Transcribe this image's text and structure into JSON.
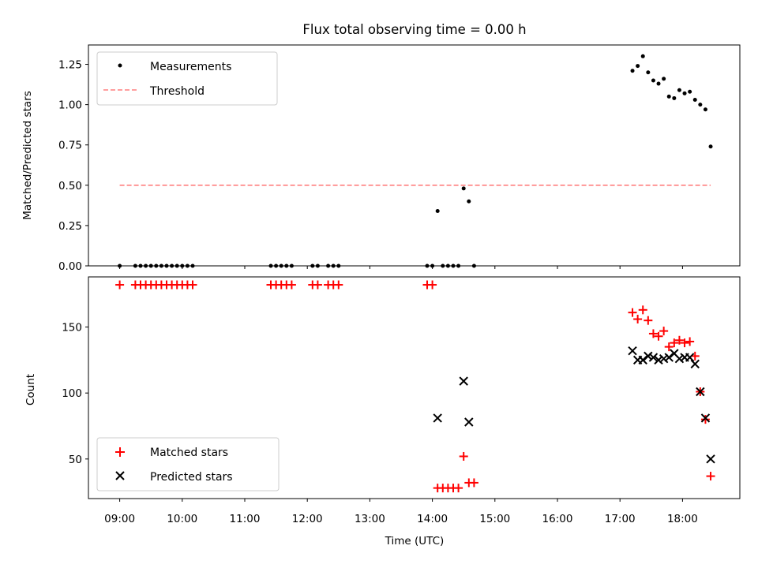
{
  "title": "Flux total observing time = 0.00 h",
  "chart_data": [
    {
      "type": "scatter",
      "ylabel": "Matched/Predicted stars",
      "xlim": [
        "08:30",
        "18:55"
      ],
      "ylim": [
        0,
        1.37
      ],
      "yticks": [
        0.0,
        0.25,
        0.5,
        0.75,
        1.0,
        1.25
      ],
      "ytick_labels": [
        "0.00",
        "0.25",
        "0.50",
        "0.75",
        "1.00",
        "1.25"
      ],
      "legend_position": "top-left",
      "series": [
        {
          "name": "Measurements",
          "marker": "dot",
          "color": "#000000",
          "x": [
            "09:00",
            "09:15",
            "09:20",
            "09:25",
            "09:30",
            "09:35",
            "09:40",
            "09:45",
            "09:50",
            "09:55",
            "10:00",
            "10:05",
            "10:10",
            "11:25",
            "11:30",
            "11:35",
            "11:40",
            "11:45",
            "12:05",
            "12:10",
            "12:20",
            "12:25",
            "12:30",
            "13:55",
            "14:00",
            "14:05",
            "14:10",
            "14:15",
            "14:20",
            "14:25",
            "14:30",
            "14:35",
            "14:40",
            "17:12",
            "17:17",
            "17:22",
            "17:27",
            "17:32",
            "17:37",
            "17:42",
            "17:47",
            "17:52",
            "17:57",
            "18:02",
            "18:07",
            "18:12",
            "18:17",
            "18:22",
            "18:27"
          ],
          "y": [
            0,
            0,
            0,
            0,
            0,
            0,
            0,
            0,
            0,
            0,
            0,
            0,
            0,
            0,
            0,
            0,
            0,
            0,
            0,
            0,
            0,
            0,
            0,
            0,
            0,
            0.34,
            0,
            0,
            0,
            0,
            0.48,
            0.4,
            0,
            1.21,
            1.24,
            1.3,
            1.2,
            1.15,
            1.13,
            1.16,
            1.05,
            1.04,
            1.09,
            1.07,
            1.08,
            1.03,
            1.0,
            0.97,
            0.74
          ]
        },
        {
          "name": "Threshold",
          "marker": "dashed-line",
          "color": "#ff7f7f",
          "x": [
            "09:00",
            "18:27"
          ],
          "y": [
            0.5,
            0.5
          ]
        }
      ]
    },
    {
      "type": "scatter",
      "xlabel": "Time (UTC)",
      "ylabel": "Count",
      "xlim": [
        "08:30",
        "18:55"
      ],
      "ylim": [
        20,
        188
      ],
      "yticks": [
        50,
        100,
        150
      ],
      "ytick_labels": [
        "50",
        "100",
        "150"
      ],
      "xticks": [
        "09:00",
        "10:00",
        "11:00",
        "12:00",
        "13:00",
        "14:00",
        "15:00",
        "16:00",
        "17:00",
        "18:00"
      ],
      "legend_position": "bottom-left",
      "series": [
        {
          "name": "Matched stars",
          "marker": "plus",
          "color": "#ff0000",
          "x": [
            "09:00",
            "09:15",
            "09:20",
            "09:25",
            "09:30",
            "09:35",
            "09:40",
            "09:45",
            "09:50",
            "09:55",
            "10:00",
            "10:05",
            "10:10",
            "11:25",
            "11:30",
            "11:35",
            "11:40",
            "11:45",
            "12:05",
            "12:10",
            "12:20",
            "12:25",
            "12:30",
            "13:55",
            "14:00",
            "14:05",
            "14:10",
            "14:15",
            "14:20",
            "14:25",
            "14:30",
            "14:35",
            "14:40",
            "17:12",
            "17:17",
            "17:22",
            "17:27",
            "17:32",
            "17:37",
            "17:42",
            "17:47",
            "17:52",
            "17:57",
            "18:02",
            "18:07",
            "18:12",
            "18:17",
            "18:22",
            "18:27"
          ],
          "y": [
            182,
            182,
            182,
            182,
            182,
            182,
            182,
            182,
            182,
            182,
            182,
            182,
            182,
            182,
            182,
            182,
            182,
            182,
            182,
            182,
            182,
            182,
            182,
            182,
            182,
            28,
            28,
            28,
            28,
            28,
            52,
            32,
            32,
            161,
            156,
            163,
            155,
            145,
            143,
            147,
            135,
            138,
            140,
            138,
            139,
            128,
            101,
            80,
            37
          ]
        },
        {
          "name": "Predicted stars",
          "marker": "x",
          "color": "#000000",
          "x": [
            "14:05",
            "14:30",
            "14:35",
            "17:12",
            "17:17",
            "17:22",
            "17:27",
            "17:32",
            "17:37",
            "17:42",
            "17:47",
            "17:52",
            "17:57",
            "18:02",
            "18:07",
            "18:12",
            "18:17",
            "18:22",
            "18:27"
          ],
          "y": [
            81,
            109,
            78,
            132,
            125,
            125,
            128,
            127,
            125,
            126,
            127,
            130,
            126,
            127,
            127,
            122,
            101,
            81,
            50
          ]
        }
      ]
    }
  ]
}
